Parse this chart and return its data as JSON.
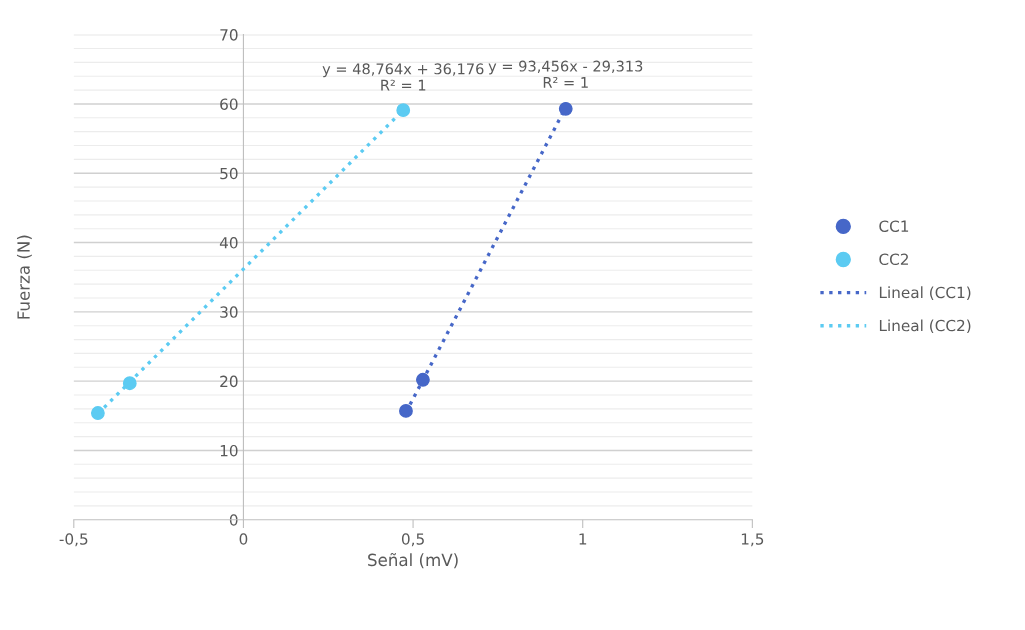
{
  "chart_data": {
    "type": "scatter",
    "xlabel": "Señal (mV)",
    "ylabel": "Fuerza (N)",
    "xlim": [
      -0.5,
      1.5
    ],
    "ylim": [
      0,
      70
    ],
    "xticks": [
      {
        "value": -0.5,
        "label": "-0,5"
      },
      0,
      {
        "value": 0.5,
        "label": "0,5"
      },
      1,
      {
        "value": 1.5,
        "label": "1,5"
      }
    ],
    "yticks": [
      0,
      10,
      20,
      30,
      40,
      50,
      60,
      70
    ],
    "grid": "y",
    "legend": "right",
    "marker": "circle",
    "series": [
      {
        "name": "CC1",
        "color": "#4667c8",
        "x": [
          0.479,
          0.529,
          0.95
        ],
        "values": [
          15.7,
          20.2,
          59.3
        ]
      },
      {
        "name": "CC2",
        "color": "#5ccbf2",
        "x": [
          -0.429,
          -0.335,
          0.471
        ],
        "values": [
          15.4,
          19.7,
          59.1
        ]
      },
      {
        "name": "Lineal (CC1)",
        "type": "line",
        "line_style": "dotted",
        "marker": "none",
        "color": "#4667c8",
        "x": [
          0.479,
          0.95
        ],
        "values": [
          15.5,
          59.5
        ]
      },
      {
        "name": "Lineal (CC2)",
        "type": "line",
        "line_style": "dotted",
        "marker": "none",
        "color": "#5ccbf2",
        "x": [
          -0.429,
          0.471
        ],
        "values": [
          15.3,
          59.1
        ]
      }
    ],
    "annotations": [
      {
        "text": "y = 48,764x + 36,176\nR² = 1",
        "x": 0.471,
        "y": 59.1
      },
      {
        "text": "y = 93,456x - 29,313\nR² = 1",
        "x": 0.95,
        "y": 59.5
      }
    ]
  }
}
